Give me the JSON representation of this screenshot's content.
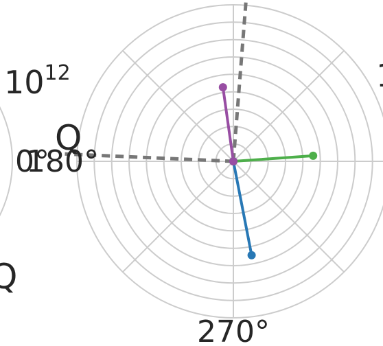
{
  "chart_data": {
    "type": "polar",
    "title": "",
    "grid": true,
    "radial_rings": 9,
    "angle_labels": [
      "180°",
      "270°",
      "0°"
    ],
    "annotations": {
      "exponent": "10",
      "exponent_power": "12",
      "left_label": "Q",
      "axis_label": "Q",
      "right_partial": "1"
    },
    "series": [
      {
        "color": "#2878b5",
        "theta_deg": 281,
        "r": 5.5
      },
      {
        "color": "#4daf4a",
        "theta_deg": 4,
        "r": 4.6
      },
      {
        "color": "#984ea3",
        "theta_deg": 98,
        "r": 4.3
      }
    ],
    "reference_lines": [
      {
        "theta_deg": 85.5,
        "r": 10.5
      },
      {
        "theta_deg": 177.5,
        "r": 9.7
      }
    ]
  }
}
